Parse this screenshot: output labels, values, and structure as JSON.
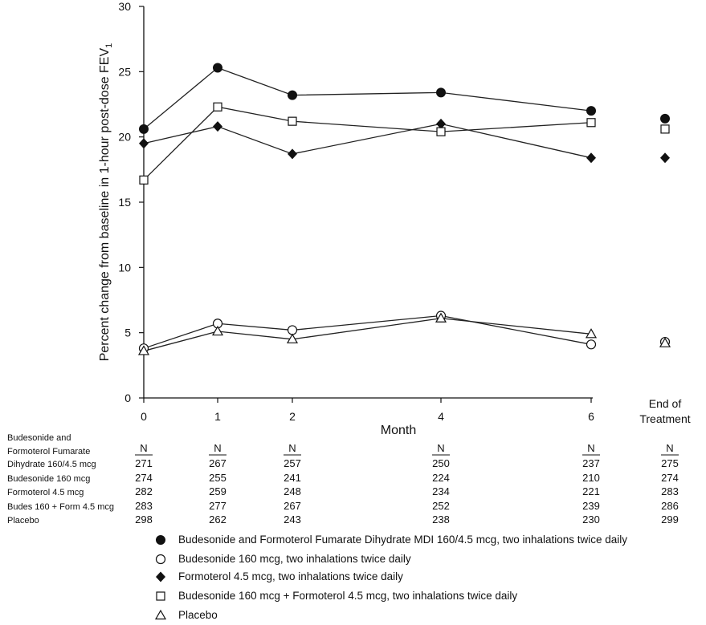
{
  "chart_data": {
    "type": "line",
    "xlabel": "Month",
    "ylabel": "Percent change from baseline in 1-hour post-dose FEV",
    "ylabel_subscript": "1",
    "ylim": [
      0,
      30
    ],
    "yticks": [
      "0",
      "5",
      "10",
      "15",
      "20",
      "25",
      "30"
    ],
    "x": [
      0,
      1,
      2,
      4,
      6
    ],
    "xtick_labels": [
      "0",
      "1",
      "2",
      "4",
      "6"
    ],
    "end_label": [
      "End of",
      "Treatment"
    ],
    "series": [
      {
        "name": "Budesonide and Formoterol Fumarate Dihydrate MDI 160/4.5 mcg, two inhalations twice daily",
        "marker": "filled-circle",
        "values": [
          20.6,
          25.3,
          23.2,
          23.4,
          22.0
        ],
        "end_of_treatment": 21.4
      },
      {
        "name": "Budesonide 160 mcg, two inhalations twice daily",
        "marker": "open-circle",
        "values": [
          3.8,
          5.7,
          5.2,
          6.3,
          4.1
        ],
        "end_of_treatment": 4.3
      },
      {
        "name": "Formoterol 4.5 mcg, two inhalations twice daily",
        "marker": "filled-diamond",
        "values": [
          19.5,
          20.8,
          18.7,
          21.0,
          18.4
        ],
        "end_of_treatment": 18.4
      },
      {
        "name": "Budesonide 160 mcg + Formoterol 4.5 mcg, two inhalations twice daily",
        "marker": "open-square",
        "values": [
          16.7,
          22.3,
          21.2,
          20.4,
          21.1
        ],
        "end_of_treatment": 20.6
      },
      {
        "name": "Placebo",
        "marker": "open-triangle",
        "values": [
          3.6,
          5.1,
          4.5,
          6.1,
          4.9
        ],
        "end_of_treatment": 4.2
      }
    ]
  },
  "n_table": {
    "header": "N",
    "rows": [
      {
        "label_lines": [
          "Budesonide and",
          "Formoterol Fumarate",
          "Dihydrate 160/4.5 mcg"
        ],
        "values": [
          "271",
          "267",
          "257",
          "250",
          "237",
          "275"
        ]
      },
      {
        "label_lines": [
          "Budesonide 160 mcg"
        ],
        "values": [
          "274",
          "255",
          "241",
          "224",
          "210",
          "274"
        ]
      },
      {
        "label_lines": [
          "Formoterol 4.5 mcg"
        ],
        "values": [
          "282",
          "259",
          "248",
          "234",
          "221",
          "283"
        ]
      },
      {
        "label_lines": [
          "Budes 160 + Form 4.5 mcg"
        ],
        "values": [
          "283",
          "277",
          "267",
          "252",
          "239",
          "286"
        ]
      },
      {
        "label_lines": [
          "Placebo"
        ],
        "values": [
          "298",
          "262",
          "243",
          "238",
          "230",
          "299"
        ]
      }
    ]
  }
}
